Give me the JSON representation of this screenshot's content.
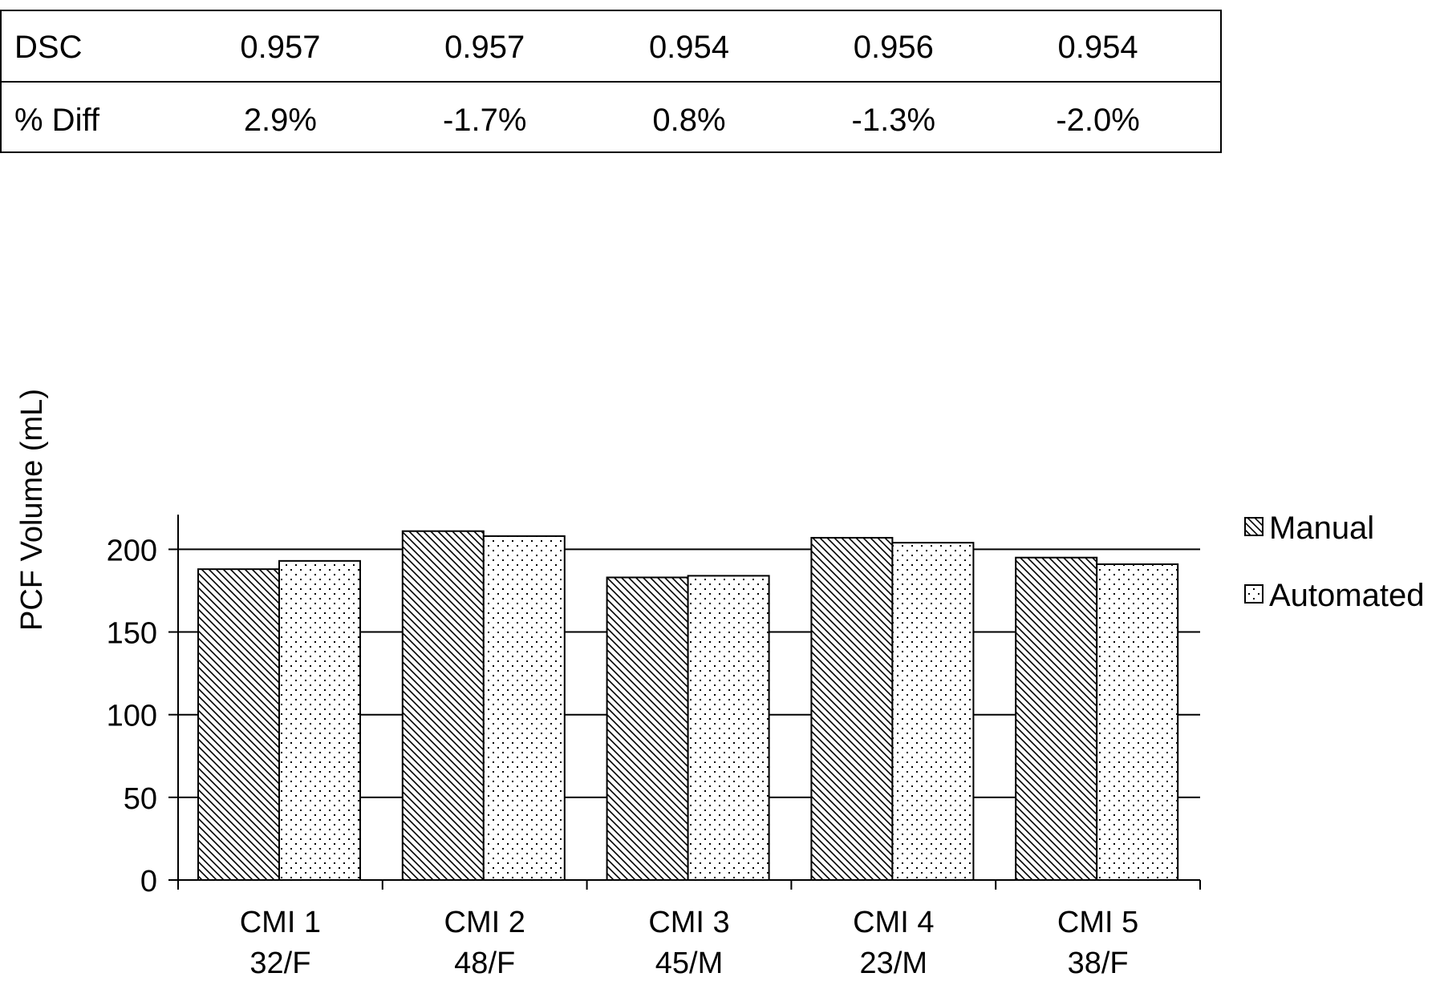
{
  "chart_data": {
    "type": "bar",
    "ylabel": "PCF Volume (mL)",
    "ylim": [
      0,
      220
    ],
    "yticks": [
      0,
      50,
      100,
      150,
      200
    ],
    "grid": true,
    "legend_position": "right",
    "categories": [
      {
        "line1": "CMI 1",
        "line2": "32/F"
      },
      {
        "line1": "CMI 2",
        "line2": "48/F"
      },
      {
        "line1": "CMI 3",
        "line2": "45/M"
      },
      {
        "line1": "CMI 4",
        "line2": "23/M"
      },
      {
        "line1": "CMI 5",
        "line2": "38/F"
      }
    ],
    "series": [
      {
        "name": "Manual",
        "pattern": "diagonal-hatch",
        "values": [
          188,
          211,
          183,
          207,
          195
        ]
      },
      {
        "name": "Automated",
        "pattern": "dots",
        "values": [
          193,
          208,
          184,
          204,
          191
        ]
      }
    ],
    "table": {
      "rows": [
        {
          "label": "DSC",
          "values": [
            "0.957",
            "0.957",
            "0.954",
            "0.956",
            "0.954"
          ]
        },
        {
          "label": "% Diff",
          "values": [
            "2.9%",
            "-1.7%",
            "0.8%",
            "-1.3%",
            "-2.0%"
          ]
        }
      ]
    },
    "colors": {
      "ink": "#000000",
      "background": "#ffffff"
    }
  }
}
